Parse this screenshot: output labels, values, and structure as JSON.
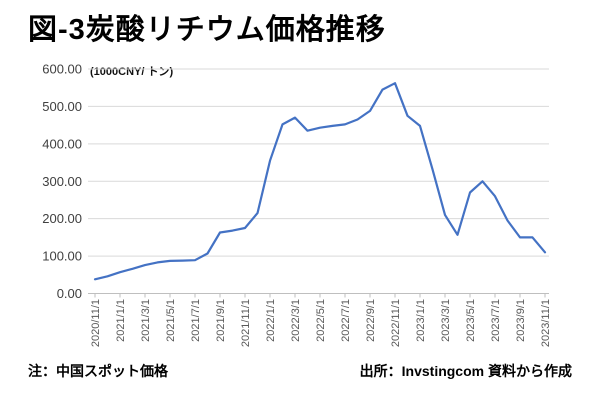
{
  "page": {
    "title": "図-3炭酸リチウム価格推移"
  },
  "footer": {
    "note": "注：中国スポット価格",
    "source": "出所：Invstingcom  資料から作成"
  },
  "chart_data": {
    "type": "line",
    "title": "図-3炭酸リチウム価格推移",
    "unit_label": "(1000CNY/ トン)",
    "x": [
      "2020/11/1",
      "2020/12/1",
      "2021/1/1",
      "2021/2/1",
      "2021/3/1",
      "2021/4/1",
      "2021/5/1",
      "2021/6/1",
      "2021/7/1",
      "2021/8/1",
      "2021/9/1",
      "2021/10/1",
      "2021/11/1",
      "2021/12/1",
      "2022/1/1",
      "2022/2/1",
      "2022/3/1",
      "2022/4/1",
      "2022/5/1",
      "2022/6/1",
      "2022/7/1",
      "2022/8/1",
      "2022/9/1",
      "2022/10/1",
      "2022/11/1",
      "2022/12/1",
      "2023/1/1",
      "2023/2/1",
      "2023/3/1",
      "2023/4/1",
      "2023/5/1",
      "2023/6/1",
      "2023/7/1",
      "2023/8/1",
      "2023/9/1",
      "2023/10/1",
      "2023/11/1"
    ],
    "values": [
      38,
      46,
      57,
      66,
      76,
      83,
      87,
      88,
      89,
      107,
      163,
      168,
      175,
      215,
      355,
      452,
      470,
      435,
      443,
      448,
      452,
      465,
      488,
      545,
      562,
      475,
      448,
      332,
      210,
      157,
      270,
      300,
      260,
      195,
      150,
      150,
      110
    ],
    "x_tick_labels": [
      "2020/11/1",
      "2021/1/1",
      "2021/3/1",
      "2021/5/1",
      "2021/7/1",
      "2021/9/1",
      "2021/11/1",
      "2022/1/1",
      "2022/3/1",
      "2022/5/1",
      "2022/7/1",
      "2022/9/1",
      "2022/11/1",
      "2023/1/1",
      "2023/3/1",
      "2023/5/1",
      "2023/7/1",
      "2023/9/1",
      "2023/11/1"
    ],
    "y_tick_labels": [
      "0.00",
      "100.00",
      "200.00",
      "300.00",
      "400.00",
      "500.00",
      "600.00"
    ],
    "y_tick_values": [
      0,
      100,
      200,
      300,
      400,
      500,
      600
    ],
    "ylim": [
      0,
      600
    ],
    "grid": "horizontal-only",
    "legend": "none",
    "colors": {
      "line": "#4472C4",
      "gridline": "#D9D9D9",
      "axis": "#BFBFBF",
      "tick_text": "#595959",
      "title_text": "#000000"
    }
  }
}
